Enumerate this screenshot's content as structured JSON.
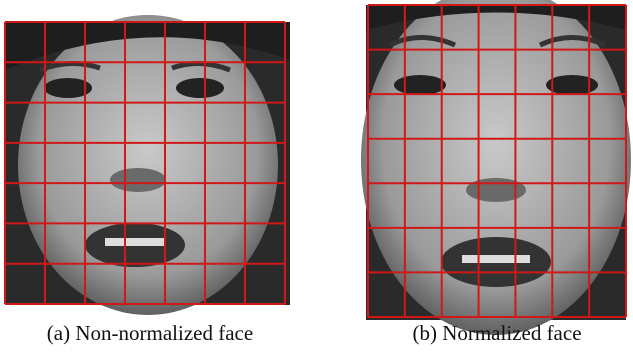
{
  "figure": {
    "panels": [
      {
        "caption": "(a) Non-normalized face"
      },
      {
        "caption": "(b) Normalized face"
      }
    ]
  }
}
